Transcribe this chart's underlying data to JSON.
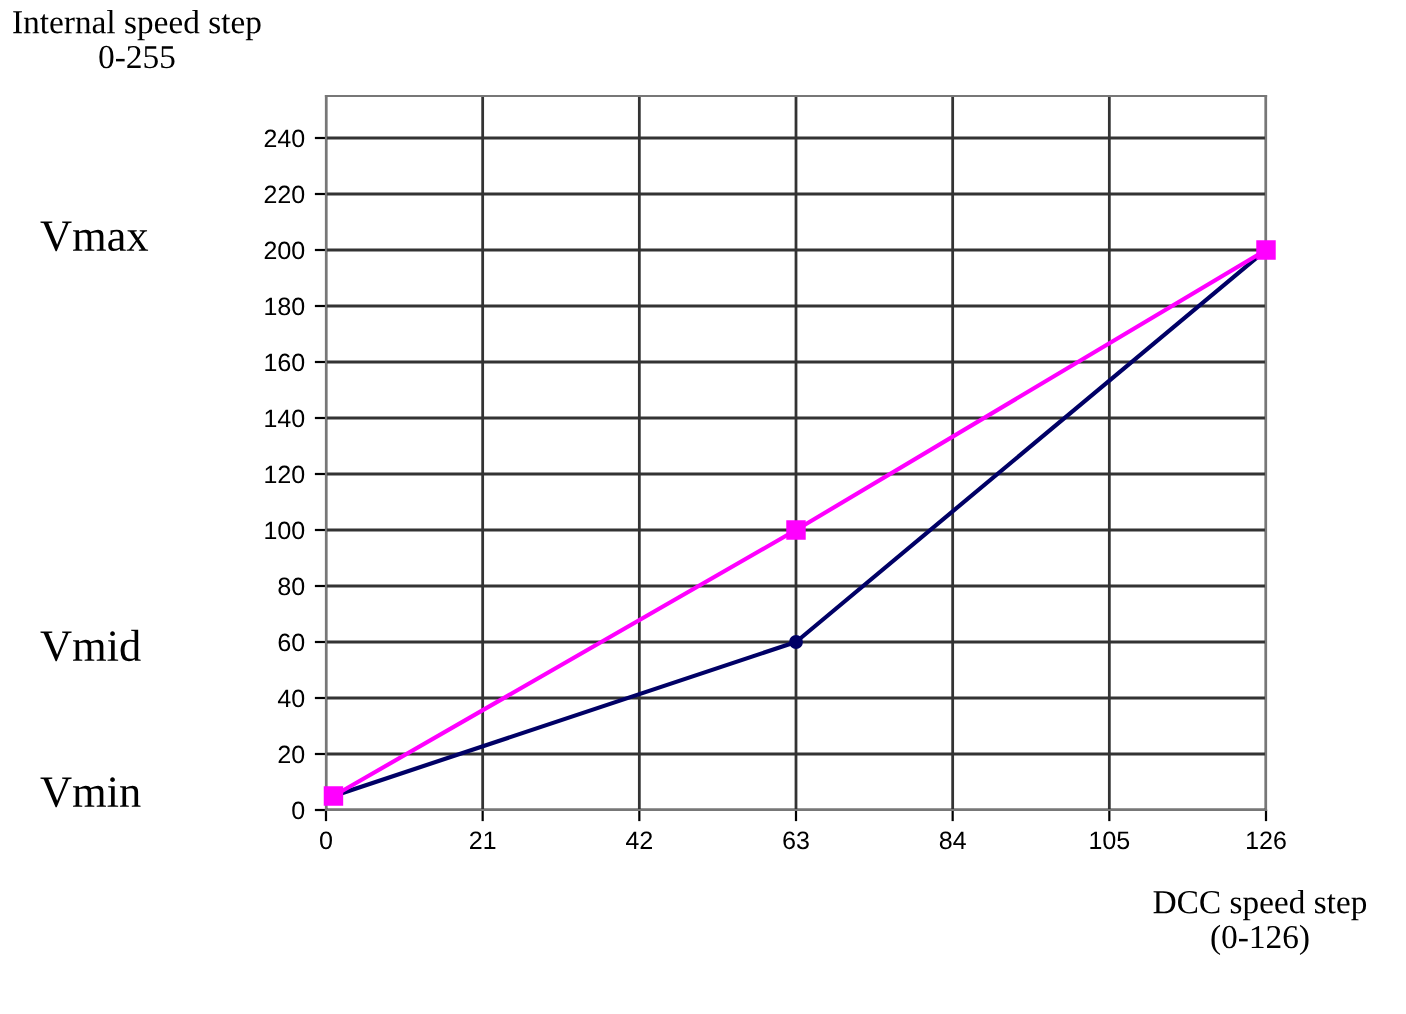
{
  "chart_data": {
    "type": "line",
    "ylabel": "Internal speed step\n0-255",
    "xlabel": "DCC speed step\n(0-126)",
    "xlim": [
      0,
      126
    ],
    "xticks": [
      0,
      21,
      42,
      63,
      84,
      105,
      126
    ],
    "ylim": [
      0,
      255
    ],
    "yticks": [
      0,
      20,
      40,
      60,
      80,
      100,
      120,
      140,
      160,
      180,
      200,
      220,
      240
    ],
    "grid": true,
    "series": [
      {
        "color": "#ff00ff",
        "marker": "square",
        "x": [
          1,
          63,
          126
        ],
        "values": [
          5,
          100,
          200
        ]
      },
      {
        "color": "#000066",
        "marker": "circle",
        "x": [
          1,
          63,
          126
        ],
        "values": [
          5,
          60,
          200
        ]
      }
    ],
    "annotations": [
      "Vmax",
      "Vmid",
      "Vmin"
    ]
  }
}
